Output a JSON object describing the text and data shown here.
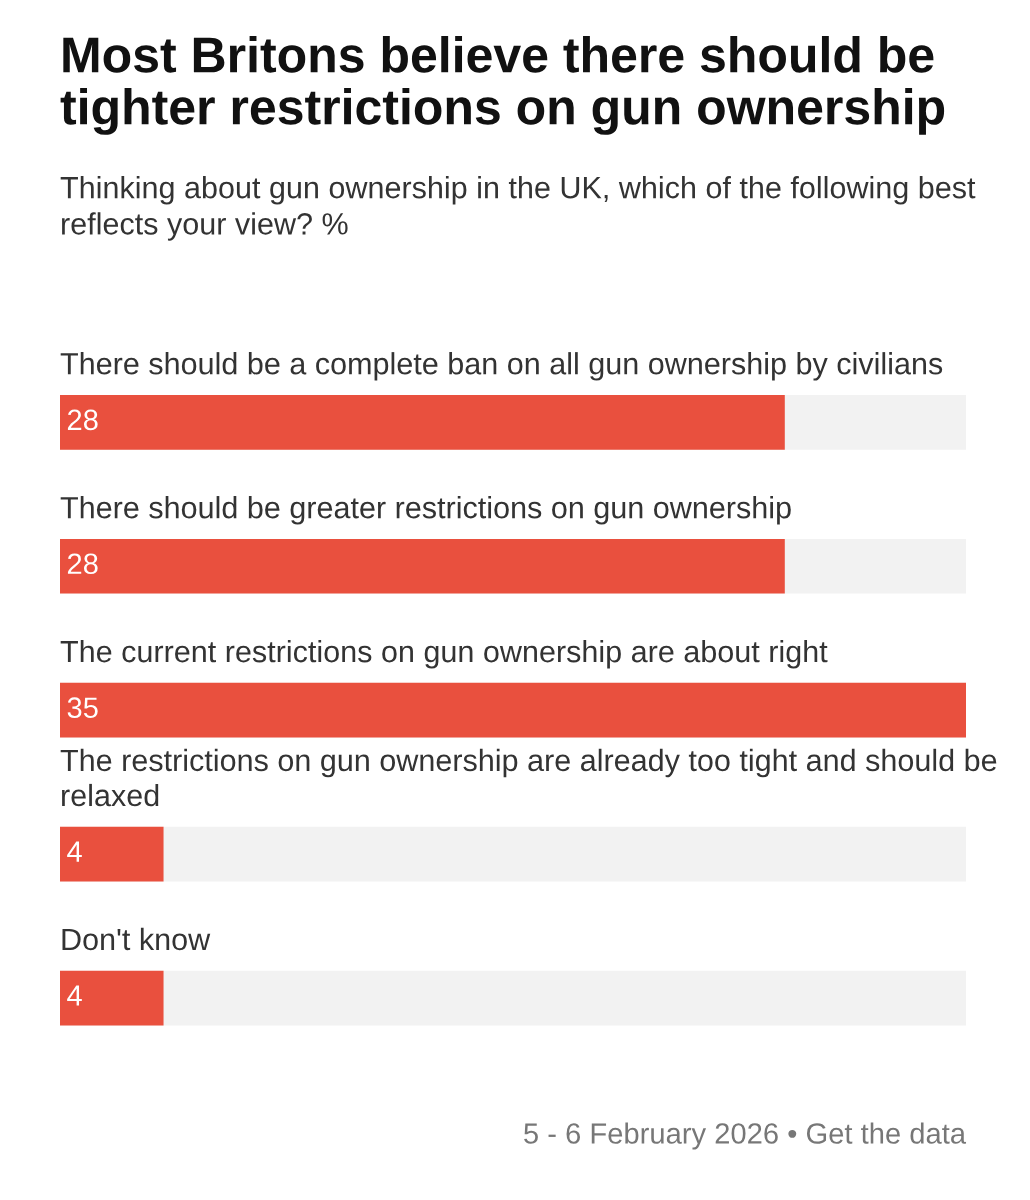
{
  "chart_data": {
    "type": "bar",
    "orientation": "horizontal",
    "title": "Most Britons believe there should be tighter restrictions on gun ownership",
    "subtitle": "Thinking about gun ownership in the UK, which of the following best reflects your view? %",
    "categories": [
      "There should be a complete ban on all gun ownership by civilians",
      "There should be greater restrictions on gun ownership",
      "The current restrictions on gun ownership are about right",
      "The restrictions on gun ownership are already too tight and should be relaxed",
      "Don't know"
    ],
    "values": [
      28,
      28,
      35,
      4,
      4
    ],
    "color": "#e9503e",
    "data_labels": true,
    "tick_labels": false,
    "annotations": [
      "5 - 6 February 2026 • Get the data"
    ]
  }
}
